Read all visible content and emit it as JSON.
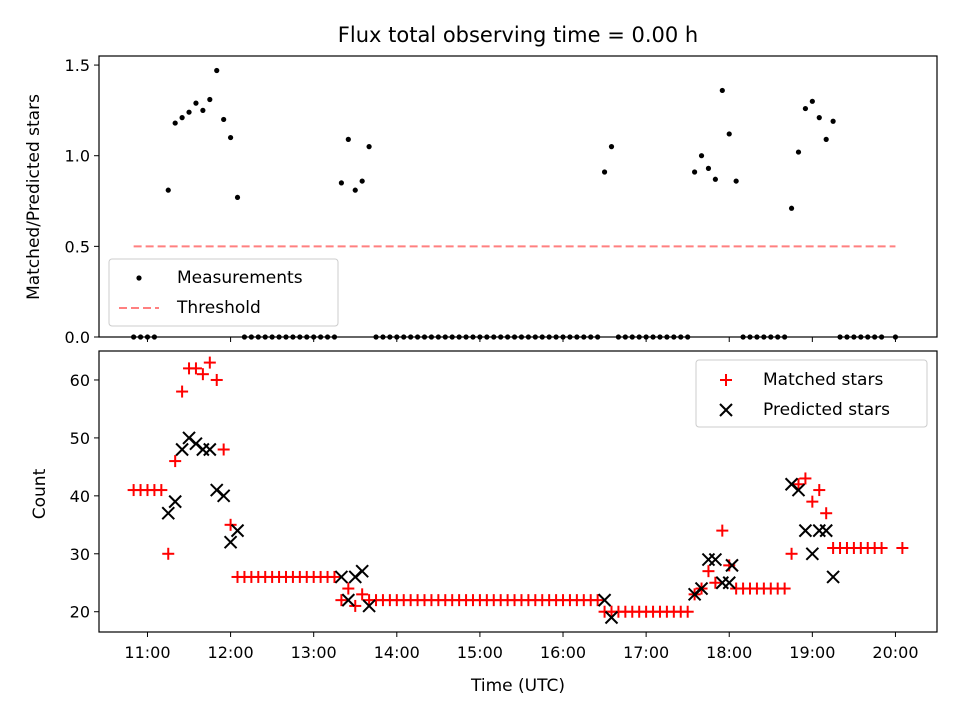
{
  "chart_data": [
    {
      "type": "scatter",
      "title": "Flux total observing time = 0.00 h",
      "xlabel": "",
      "ylabel": "Matched/Predicted stars",
      "xlim": [
        "10:25",
        "20:30"
      ],
      "ylim": [
        0,
        1.55
      ],
      "yticks": [
        "0.0",
        "0.5",
        "1.0",
        "1.5"
      ],
      "legend_position": "lower-left",
      "series": [
        {
          "name": "Measurements",
          "marker": "dot",
          "color": "#000000",
          "points": [
            [
              "10:50",
              0
            ],
            [
              "10:55",
              0
            ],
            [
              "11:00",
              0
            ],
            [
              "11:05",
              0
            ],
            [
              "11:15",
              0.81
            ],
            [
              "11:20",
              1.18
            ],
            [
              "11:25",
              1.21
            ],
            [
              "11:30",
              1.24
            ],
            [
              "11:35",
              1.29
            ],
            [
              "11:40",
              1.25
            ],
            [
              "11:45",
              1.31
            ],
            [
              "11:50",
              1.47
            ],
            [
              "11:55",
              1.2
            ],
            [
              "12:00",
              1.1
            ],
            [
              "12:05",
              0.77
            ],
            [
              "12:10",
              0
            ],
            [
              "12:15",
              0
            ],
            [
              "12:20",
              0
            ],
            [
              "12:25",
              0
            ],
            [
              "12:30",
              0
            ],
            [
              "12:35",
              0
            ],
            [
              "12:40",
              0
            ],
            [
              "12:45",
              0
            ],
            [
              "12:50",
              0
            ],
            [
              "12:55",
              0
            ],
            [
              "13:00",
              0
            ],
            [
              "13:05",
              0
            ],
            [
              "13:10",
              0
            ],
            [
              "13:15",
              0
            ],
            [
              "13:20",
              0.85
            ],
            [
              "13:25",
              1.09
            ],
            [
              "13:30",
              0.81
            ],
            [
              "13:35",
              0.86
            ],
            [
              "13:40",
              1.05
            ],
            [
              "13:45",
              0
            ],
            [
              "13:50",
              0
            ],
            [
              "13:55",
              0
            ],
            [
              "14:00",
              0
            ],
            [
              "14:05",
              0
            ],
            [
              "14:10",
              0
            ],
            [
              "14:15",
              0
            ],
            [
              "14:20",
              0
            ],
            [
              "14:25",
              0
            ],
            [
              "14:30",
              0
            ],
            [
              "14:35",
              0
            ],
            [
              "14:40",
              0
            ],
            [
              "14:45",
              0
            ],
            [
              "14:50",
              0
            ],
            [
              "14:55",
              0
            ],
            [
              "15:00",
              0
            ],
            [
              "15:05",
              0
            ],
            [
              "15:10",
              0
            ],
            [
              "15:15",
              0
            ],
            [
              "15:20",
              0
            ],
            [
              "15:25",
              0
            ],
            [
              "15:30",
              0
            ],
            [
              "15:35",
              0
            ],
            [
              "15:40",
              0
            ],
            [
              "15:45",
              0
            ],
            [
              "15:50",
              0
            ],
            [
              "15:55",
              0
            ],
            [
              "16:00",
              0
            ],
            [
              "16:05",
              0
            ],
            [
              "16:10",
              0
            ],
            [
              "16:15",
              0
            ],
            [
              "16:20",
              0
            ],
            [
              "16:25",
              0
            ],
            [
              "16:30",
              0.91
            ],
            [
              "16:35",
              1.05
            ],
            [
              "16:40",
              0
            ],
            [
              "16:45",
              0
            ],
            [
              "16:50",
              0
            ],
            [
              "16:55",
              0
            ],
            [
              "17:00",
              0
            ],
            [
              "17:05",
              0
            ],
            [
              "17:10",
              0
            ],
            [
              "17:15",
              0
            ],
            [
              "17:20",
              0
            ],
            [
              "17:25",
              0
            ],
            [
              "17:30",
              0
            ],
            [
              "17:35",
              0.91
            ],
            [
              "17:40",
              1.0
            ],
            [
              "17:45",
              0.93
            ],
            [
              "17:50",
              0.87
            ],
            [
              "17:55",
              1.36
            ],
            [
              "18:00",
              1.12
            ],
            [
              "18:05",
              0.86
            ],
            [
              "18:10",
              0
            ],
            [
              "18:15",
              0
            ],
            [
              "18:20",
              0
            ],
            [
              "18:25",
              0
            ],
            [
              "18:30",
              0
            ],
            [
              "18:35",
              0
            ],
            [
              "18:40",
              0
            ],
            [
              "18:45",
              0.71
            ],
            [
              "18:50",
              1.02
            ],
            [
              "18:55",
              1.26
            ],
            [
              "19:00",
              1.3
            ],
            [
              "19:05",
              1.21
            ],
            [
              "19:10",
              1.09
            ],
            [
              "19:15",
              1.19
            ],
            [
              "19:20",
              0
            ],
            [
              "19:25",
              0
            ],
            [
              "19:30",
              0
            ],
            [
              "19:35",
              0
            ],
            [
              "19:40",
              0
            ],
            [
              "19:45",
              0
            ],
            [
              "19:50",
              0
            ],
            [
              "20:00",
              0
            ]
          ]
        },
        {
          "name": "Threshold",
          "type": "line",
          "style": "dashed",
          "color": "#ff8080",
          "points": [
            [
              "10:50",
              0.5
            ],
            [
              "20:00",
              0.5
            ]
          ]
        }
      ]
    },
    {
      "type": "scatter",
      "title": "",
      "xlabel": "Time (UTC)",
      "ylabel": "Count",
      "xlim": [
        "10:25",
        "20:30"
      ],
      "ylim": [
        16.5,
        65
      ],
      "yticks": [
        "20",
        "30",
        "40",
        "50",
        "60"
      ],
      "xticks": [
        "11:00",
        "12:00",
        "13:00",
        "14:00",
        "15:00",
        "16:00",
        "17:00",
        "18:00",
        "19:00",
        "20:00"
      ],
      "legend_position": "top-right",
      "series": [
        {
          "name": "Matched stars",
          "marker": "plus",
          "color": "#ff0000",
          "points": [
            [
              "10:50",
              41
            ],
            [
              "10:55",
              41
            ],
            [
              "11:00",
              41
            ],
            [
              "11:05",
              41
            ],
            [
              "11:10",
              41
            ],
            [
              "11:15",
              30
            ],
            [
              "11:20",
              46
            ],
            [
              "11:25",
              58
            ],
            [
              "11:30",
              62
            ],
            [
              "11:35",
              62
            ],
            [
              "11:40",
              61
            ],
            [
              "11:45",
              63
            ],
            [
              "11:50",
              60
            ],
            [
              "11:55",
              48
            ],
            [
              "12:00",
              35
            ],
            [
              "12:05",
              26
            ],
            [
              "12:10",
              26
            ],
            [
              "12:15",
              26
            ],
            [
              "12:20",
              26
            ],
            [
              "12:25",
              26
            ],
            [
              "12:30",
              26
            ],
            [
              "12:35",
              26
            ],
            [
              "12:40",
              26
            ],
            [
              "12:45",
              26
            ],
            [
              "12:50",
              26
            ],
            [
              "12:55",
              26
            ],
            [
              "13:00",
              26
            ],
            [
              "13:05",
              26
            ],
            [
              "13:10",
              26
            ],
            [
              "13:15",
              26
            ],
            [
              "13:20",
              22
            ],
            [
              "13:25",
              24
            ],
            [
              "13:30",
              21
            ],
            [
              "13:35",
              23
            ],
            [
              "13:40",
              22
            ],
            [
              "13:45",
              22
            ],
            [
              "13:50",
              22
            ],
            [
              "13:55",
              22
            ],
            [
              "14:00",
              22
            ],
            [
              "14:05",
              22
            ],
            [
              "14:10",
              22
            ],
            [
              "14:15",
              22
            ],
            [
              "14:20",
              22
            ],
            [
              "14:25",
              22
            ],
            [
              "14:30",
              22
            ],
            [
              "14:35",
              22
            ],
            [
              "14:40",
              22
            ],
            [
              "14:45",
              22
            ],
            [
              "14:50",
              22
            ],
            [
              "14:55",
              22
            ],
            [
              "15:00",
              22
            ],
            [
              "15:05",
              22
            ],
            [
              "15:10",
              22
            ],
            [
              "15:15",
              22
            ],
            [
              "15:20",
              22
            ],
            [
              "15:25",
              22
            ],
            [
              "15:30",
              22
            ],
            [
              "15:35",
              22
            ],
            [
              "15:40",
              22
            ],
            [
              "15:45",
              22
            ],
            [
              "15:50",
              22
            ],
            [
              "15:55",
              22
            ],
            [
              "16:00",
              22
            ],
            [
              "16:05",
              22
            ],
            [
              "16:10",
              22
            ],
            [
              "16:15",
              22
            ],
            [
              "16:20",
              22
            ],
            [
              "16:25",
              22
            ],
            [
              "16:30",
              20
            ],
            [
              "16:35",
              20
            ],
            [
              "16:40",
              20
            ],
            [
              "16:45",
              20
            ],
            [
              "16:50",
              20
            ],
            [
              "16:55",
              20
            ],
            [
              "17:00",
              20
            ],
            [
              "17:05",
              20
            ],
            [
              "17:10",
              20
            ],
            [
              "17:15",
              20
            ],
            [
              "17:20",
              20
            ],
            [
              "17:25",
              20
            ],
            [
              "17:30",
              20
            ],
            [
              "17:35",
              23
            ],
            [
              "17:40",
              24
            ],
            [
              "17:45",
              27
            ],
            [
              "17:50",
              25
            ],
            [
              "17:55",
              34
            ],
            [
              "18:00",
              28
            ],
            [
              "18:05",
              24
            ],
            [
              "18:10",
              24
            ],
            [
              "18:15",
              24
            ],
            [
              "18:20",
              24
            ],
            [
              "18:25",
              24
            ],
            [
              "18:30",
              24
            ],
            [
              "18:35",
              24
            ],
            [
              "18:40",
              24
            ],
            [
              "18:45",
              30
            ],
            [
              "18:50",
              42
            ],
            [
              "18:55",
              43
            ],
            [
              "19:00",
              39
            ],
            [
              "19:05",
              41
            ],
            [
              "19:10",
              37
            ],
            [
              "19:15",
              31
            ],
            [
              "19:20",
              31
            ],
            [
              "19:25",
              31
            ],
            [
              "19:30",
              31
            ],
            [
              "19:35",
              31
            ],
            [
              "19:40",
              31
            ],
            [
              "19:45",
              31
            ],
            [
              "19:50",
              31
            ],
            [
              "20:05",
              31
            ]
          ]
        },
        {
          "name": "Predicted stars",
          "marker": "x",
          "color": "#000000",
          "points": [
            [
              "11:15",
              37
            ],
            [
              "11:20",
              39
            ],
            [
              "11:25",
              48
            ],
            [
              "11:30",
              50
            ],
            [
              "11:35",
              49
            ],
            [
              "11:40",
              48
            ],
            [
              "11:45",
              48
            ],
            [
              "11:50",
              41
            ],
            [
              "11:55",
              40
            ],
            [
              "12:00",
              32
            ],
            [
              "12:05",
              34
            ],
            [
              "13:20",
              26
            ],
            [
              "13:25",
              22
            ],
            [
              "13:30",
              26
            ],
            [
              "13:35",
              27
            ],
            [
              "13:40",
              21
            ],
            [
              "16:30",
              22
            ],
            [
              "16:35",
              19
            ],
            [
              "17:35",
              23
            ],
            [
              "17:40",
              24
            ],
            [
              "17:45",
              29
            ],
            [
              "17:50",
              29
            ],
            [
              "17:55",
              25
            ],
            [
              "18:00",
              25
            ],
            [
              "18:02",
              28
            ],
            [
              "18:45",
              42
            ],
            [
              "18:50",
              41
            ],
            [
              "18:55",
              34
            ],
            [
              "19:00",
              30
            ],
            [
              "19:05",
              34
            ],
            [
              "19:10",
              34
            ],
            [
              "19:15",
              26
            ]
          ]
        }
      ]
    }
  ]
}
